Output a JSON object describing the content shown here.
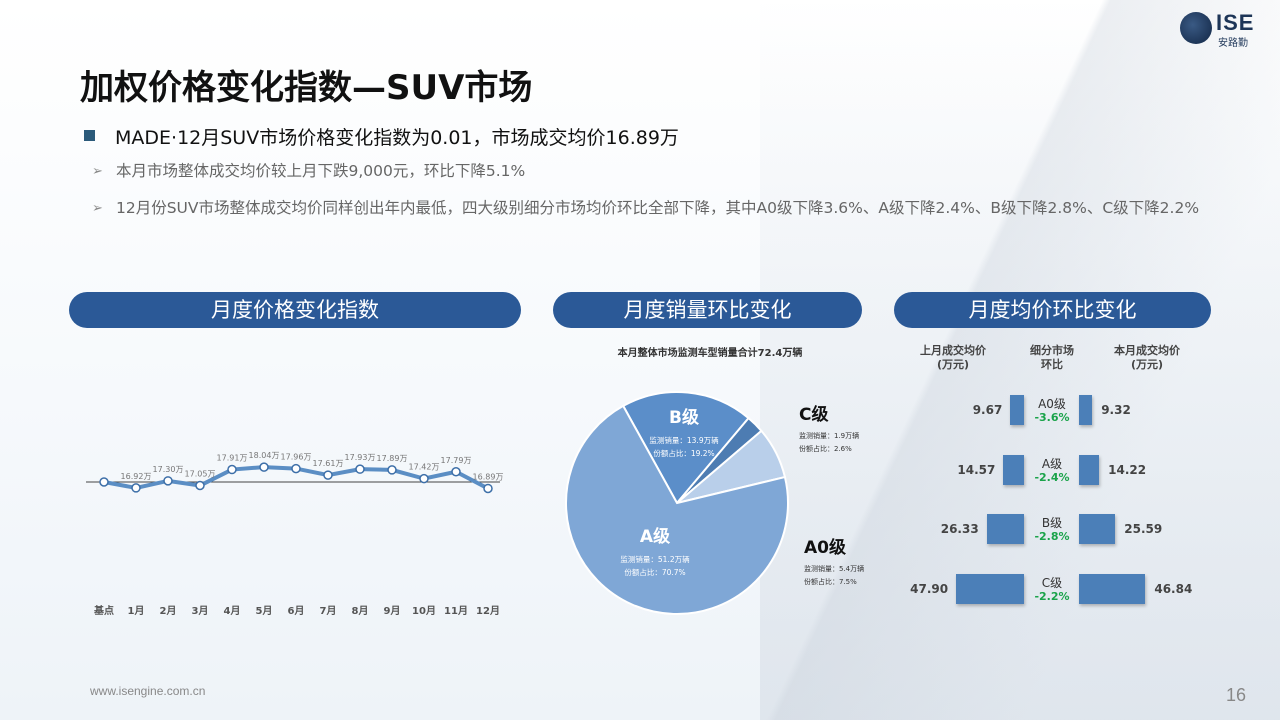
{
  "header": {
    "logo_text": "ISE",
    "logo_sub": "安路勤",
    "title": "加权价格变化指数—SUV市场",
    "headline": "MADE·12月SUV市场价格变化指数为0.01，市场成交均价16.89万",
    "bullets": [
      "本月市场整体成交均价较上月下跌9,000元，环比下降5.1%",
      "12月份SUV市场整体成交均价同样创出年内最低，四大级别细分市场均价环比全部下降，其中A0级下降3.6%、A级下降2.4%、B级下降2.8%、C级下降2.2%"
    ]
  },
  "sections": {
    "price_index": "月度价格变化指数",
    "sales_mom": "月度销量环比变化",
    "avg_price_mom": "月度均价环比变化"
  },
  "chart_data": [
    {
      "type": "line",
      "title": "",
      "categories": [
        "基点",
        "1月",
        "2月",
        "3月",
        "4月",
        "5月",
        "6月",
        "7月",
        "8月",
        "9月",
        "10月",
        "11月",
        "12月"
      ],
      "values": [
        null,
        16.92,
        17.3,
        17.05,
        17.91,
        18.04,
        17.96,
        17.61,
        17.93,
        17.89,
        17.42,
        17.79,
        16.89
      ],
      "labels": [
        "",
        "16.92万",
        "17.30万",
        "17.05万",
        "17.91万",
        "18.04万",
        "17.96万",
        "17.61万",
        "17.93万",
        "17.89万",
        "17.42万",
        "17.79万",
        "16.89万"
      ],
      "colors": {
        "line": "#5b8ec4",
        "marker_fill": "#ffffff",
        "marker_stroke": "#3d6fa8"
      }
    },
    {
      "type": "pie",
      "title": "本月整体市场监测车型销量合计72.4万辆",
      "slices": [
        {
          "name": "A级",
          "volume_label": "监测销量：51.2万辆",
          "share_label": "份额占比：70.7%",
          "value": 70.7,
          "color": "#7fa7d6"
        },
        {
          "name": "B级",
          "volume_label": "监测销量：13.9万辆",
          "share_label": "份额占比：19.2%",
          "value": 19.2,
          "color": "#5b8ec9"
        },
        {
          "name": "C级",
          "volume_label": "监测销量：1.9万辆",
          "share_label": "份额占比：2.6%",
          "value": 2.6,
          "color": "#4d7cb2"
        },
        {
          "name": "A0级",
          "volume_label": "监测销量：5.4万辆",
          "share_label": "份额占比：7.5%",
          "value": 7.5,
          "color": "#b9cfea"
        }
      ]
    },
    {
      "type": "bar",
      "title": "",
      "headers": {
        "prev": "上月成交均价\n(万元)",
        "segment": "细分市场\n环比",
        "curr": "本月成交均价\n(万元)"
      },
      "rows": [
        {
          "segment": "A0级",
          "prev": 9.67,
          "curr": 9.32,
          "change": "-3.6%"
        },
        {
          "segment": "A级",
          "prev": 14.57,
          "curr": 14.22,
          "change": "-2.4%"
        },
        {
          "segment": "B级",
          "prev": 26.33,
          "curr": 25.59,
          "change": "-2.8%"
        },
        {
          "segment": "C级",
          "prev": 47.9,
          "curr": 46.84,
          "change": "-2.2%"
        }
      ],
      "colors": {
        "bar": "#4b7fb8",
        "change": "#1aa34a"
      }
    }
  ],
  "footer": {
    "url": "www.isengine.com.cn",
    "page": "16"
  }
}
